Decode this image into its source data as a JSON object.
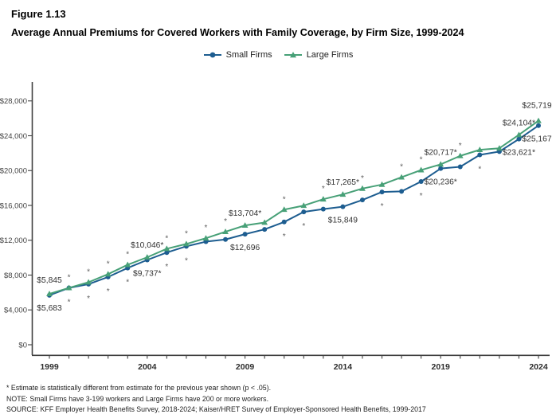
{
  "figure": {
    "label": "Figure 1.13",
    "title": "Average Annual Premiums for Covered Workers with Family Coverage, by Firm Size, 1999-2024"
  },
  "chart_data": {
    "type": "line",
    "title": "Average Annual Premiums for Covered Workers with Family Coverage, by Firm Size, 1999-2024",
    "xlabel": "",
    "ylabel": "",
    "grid": false,
    "legend_position": "top-center",
    "ylim": [
      0,
      30000
    ],
    "yticks": [
      0,
      4000,
      8000,
      12000,
      16000,
      20000,
      24000,
      28000
    ],
    "ytick_labels": [
      "$0",
      "$4,000",
      "$8,000",
      "$12,000",
      "$16,000",
      "$20,000",
      "$24,000",
      "$28,000"
    ],
    "x": [
      1999,
      2000,
      2001,
      2002,
      2003,
      2004,
      2005,
      2006,
      2007,
      2008,
      2009,
      2010,
      2011,
      2012,
      2013,
      2014,
      2015,
      2016,
      2017,
      2018,
      2019,
      2020,
      2021,
      2022,
      2023,
      2024
    ],
    "xticks_labeled": [
      1999,
      2004,
      2009,
      2014,
      2019,
      2024
    ],
    "sig_note": "* = statistically different from previous year (p < .05)",
    "series": [
      {
        "name": "Small Firms",
        "color": "#1d5d90",
        "marker": "circle",
        "sig_side": "below",
        "values": [
          5683,
          6521,
          6959,
          7781,
          8815,
          9737,
          10587,
          11306,
          11835,
          12091,
          12696,
          13250,
          14098,
          15253,
          15581,
          15849,
          16625,
          17546,
          17615,
          18739,
          20236,
          20438,
          21804,
          22186,
          23621,
          25167
        ],
        "sig_years": [
          2000,
          2001,
          2002,
          2003,
          2005,
          2006,
          2011,
          2012,
          2016,
          2018,
          2021
        ],
        "labels": [
          {
            "year": 1999,
            "text": "$5,683",
            "pos": "below",
            "dy": 19
          },
          {
            "year": 2004,
            "text": "$9,737*",
            "pos": "below"
          },
          {
            "year": 2009,
            "text": "$12,696",
            "pos": "below"
          },
          {
            "year": 2014,
            "text": "$15,849",
            "pos": "below"
          },
          {
            "year": 2019,
            "text": "$20,236*",
            "pos": "below"
          },
          {
            "year": 2023,
            "text": "$23,621*",
            "pos": "below"
          },
          {
            "year": 2024,
            "text": "$25,167",
            "pos": "below",
            "dx": -2
          }
        ]
      },
      {
        "name": "Large Firms",
        "color": "#47a077",
        "marker": "triangle",
        "sig_side": "above",
        "values": [
          5845,
          6528,
          7178,
          8109,
          9183,
          10046,
          11025,
          11575,
          12233,
          12973,
          13704,
          14038,
          15520,
          15980,
          16715,
          17265,
          17938,
          18395,
          19235,
          20063,
          20717,
          21691,
          22389,
          22564,
          24104,
          25719
        ],
        "sig_years": [
          2000,
          2001,
          2002,
          2003,
          2005,
          2006,
          2007,
          2008,
          2011,
          2013,
          2015,
          2017,
          2018,
          2020
        ],
        "labels": [
          {
            "year": 1999,
            "text": "$5,845",
            "pos": "above",
            "dy": -14
          },
          {
            "year": 2004,
            "text": "$10,046*",
            "pos": "above"
          },
          {
            "year": 2009,
            "text": "$13,704*",
            "pos": "above"
          },
          {
            "year": 2014,
            "text": "$17,265*",
            "pos": "above"
          },
          {
            "year": 2019,
            "text": "$20,717*",
            "pos": "above"
          },
          {
            "year": 2023,
            "text": "$24,104*",
            "pos": "above"
          },
          {
            "year": 2024,
            "text": "$25,719",
            "pos": "above",
            "dy": -16,
            "dx": -2
          }
        ]
      }
    ]
  },
  "footnotes": [
    "* Estimate is statistically different from estimate for the previous year shown (p < .05).",
    "NOTE: Small Firms have 3-199 workers and Large Firms have 200 or more workers.",
    "SOURCE: KFF Employer Health Benefits Survey, 2018-2024; Kaiser/HRET Survey of Employer-Sponsored Health Benefits, 1999-2017"
  ]
}
